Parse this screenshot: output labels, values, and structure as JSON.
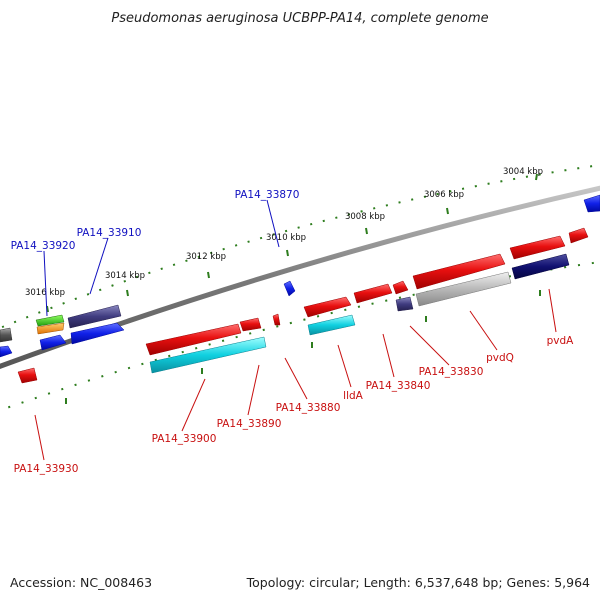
{
  "title": "Pseudomonas aeruginosa UCBPP-PA14, complete genome",
  "footer": {
    "accession": "Accession: NC_008463",
    "summary": "Topology: circular; Length: 6,537,648 bp; Genes: 5,964"
  },
  "colors": {
    "backbone": "#8a8a8a",
    "tick": "#2e7d1e",
    "forward_red": "#e01010",
    "cyan": "#10c8d8",
    "blue": "#1020e0",
    "navy": "#101070",
    "slate": "#403c80",
    "gray": "#b8b8b8",
    "label_blue": "#1010c0",
    "label_red": "#c81010"
  },
  "ticks": [
    {
      "label": "3004 kbp"
    },
    {
      "label": "3006 kbp"
    },
    {
      "label": "3008 kbp"
    },
    {
      "label": "3010 kbp"
    },
    {
      "label": "3012 kbp"
    },
    {
      "label": "3014 kbp"
    },
    {
      "label": "3016 kbp"
    }
  ],
  "gene_labels": [
    {
      "text": "PA14_33870",
      "color": "blue"
    },
    {
      "text": "PA14_33910",
      "color": "blue"
    },
    {
      "text": "PA14_33920",
      "color": "blue"
    },
    {
      "text": "PA14_33900",
      "color": "red"
    },
    {
      "text": "PA14_33890",
      "color": "red"
    },
    {
      "text": "PA14_33880",
      "color": "red"
    },
    {
      "text": "lldA",
      "color": "red"
    },
    {
      "text": "PA14_33840",
      "color": "red"
    },
    {
      "text": "PA14_33830",
      "color": "red"
    },
    {
      "text": "pvdQ",
      "color": "red"
    },
    {
      "text": "pvdA",
      "color": "red"
    },
    {
      "text": "PA14_33930",
      "color": "red"
    }
  ]
}
